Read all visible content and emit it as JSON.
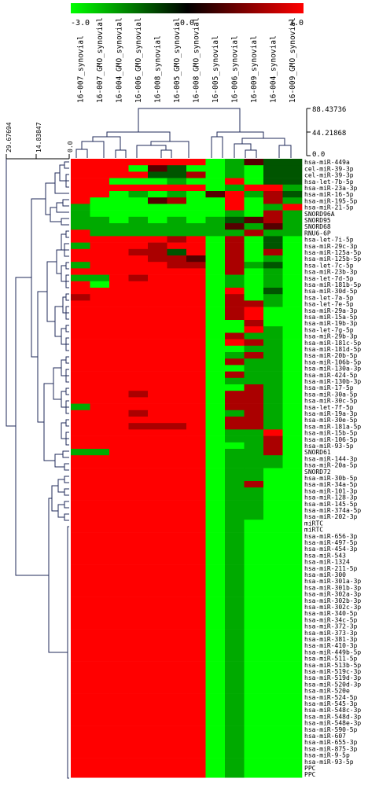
{
  "chart_data": {
    "type": "heatmap",
    "title": "",
    "color_scale": {
      "min": -3.0,
      "mid": 0.0,
      "max": 3.0,
      "min_label": "-3.0",
      "mid_label": "0.0",
      "max_label": "3.0",
      "low_color": "#00ff00",
      "mid_color": "#000000",
      "high_color": "#ff0000"
    },
    "columns": [
      "16-007_synovial",
      "16-007_GMO_synovial",
      "16-004_GMO_synovial",
      "16-006_GMO_synovial",
      "16-008_synovial",
      "16-005_GMO_synovial",
      "16-008_GMO_synovial",
      "16-005_synovial",
      "16-006_synovial",
      "16-009_synovial",
      "16-004_synovial",
      "16-009_GMO_synovial"
    ],
    "column_dendrogram_axis": {
      "ticks": [
        "88.43736",
        "44.21868",
        "0.0"
      ]
    },
    "row_dendrogram_axis": {
      "ticks": [
        "29.67694",
        "14.83847",
        "0.0"
      ]
    },
    "rows": [
      "hsa-miR-449a",
      "cel-miR-39-3p",
      "cel-miR-39-3p",
      "hsa-let-7b-5p",
      "hsa-miR-23a-3p",
      "hsa-miR-16-5p",
      "hsa-miR-195-5p",
      "hsa-miR-21-5p",
      "SNORD96A",
      "SNORD95",
      "SNORD68",
      "RNU6-6P",
      "hsa-let-7i-5p",
      "hsa-miR-29c-3p",
      "hsa-miR-125a-5p",
      "hsa-miR-125b-5p",
      "hsa-let-7c-5p",
      "hsa-miR-23b-3p",
      "hsa-let-7d-5p",
      "hsa-miR-181b-5p",
      "hsa-miR-30d-5p",
      "hsa-let-7a-5p",
      "hsa-let-7e-5p",
      "hsa-miR-29a-3p",
      "hsa-miR-15a-5p",
      "hsa-miR-19b-3p",
      "hsa-let-7g-5p",
      "hsa-miR-29b-3p",
      "hsa-miR-181c-5p",
      "hsa-miR-181d-5p",
      "hsa-miR-20b-5p",
      "hsa-miR-106b-5p",
      "hsa-miR-130a-3p",
      "hsa-miR-424-5p",
      "hsa-miR-130b-3p",
      "hsa-miR-17-5p",
      "hsa-miR-30a-5p",
      "hsa-miR-30c-5p",
      "hsa-let-7f-5p",
      "hsa-miR-19a-3p",
      "hsa-miR-30e-5p",
      "hsa-miR-181a-5p",
      "hsa-miR-15b-5p",
      "hsa-miR-106-5p",
      "hsa-miR-93-5p",
      "SNORD61",
      "hsa-miR-144-3p",
      "hsa-miR-20a-5p",
      "SNORD72",
      "hsa-miR-30b-5p",
      "hsa-miR-34a-5p",
      "hsa-miR-101-3p",
      "hsa-miR-128-3p",
      "hsa-miR-145-5p",
      "hsa-miR-374a-5p",
      "hsa-miR-202-3p",
      "miRTC",
      "miRTC",
      "hsa-miR-656-3p",
      "hsa-miR-497-5p",
      "hsa-miR-454-3p",
      "hsa-miR-543",
      "hsa-miR-1324",
      "hsa-miR-211-5p",
      "hsa-miR-300",
      "hsa-miR-301a-3p",
      "hsa-miR-301b-3p",
      "hsa-miR-302a-3p",
      "hsa-miR-302b-3p",
      "hsa-miR-302c-3p",
      "hsa-miR-340-5p",
      "hsa-miR-34c-5p",
      "hsa-miR-372-3p",
      "hsa-miR-373-3p",
      "hsa-miR-381-3p",
      "hsa-miR-410-3p",
      "hsa-miR-449b-5p",
      "hsa-miR-511-5p",
      "hsa-miR-513b-5p",
      "hsa-miR-519c-3p",
      "hsa-miR-519d-3p",
      "hsa-miR-520d-3p",
      "hsa-miR-520e",
      "hsa-miR-524-5p",
      "hsa-miR-545-3p",
      "hsa-miR-548c-3p",
      "hsa-miR-548d-3p",
      "hsa-miR-548e-3p",
      "hsa-miR-590-5p",
      "hsa-miR-607",
      "hsa-miR-655-3p",
      "hsa-miR-875-3p",
      "hsa-miR-9-5p",
      "hsa-miR-93-5p",
      "PPC",
      "PPC"
    ],
    "values": [
      [
        3,
        3,
        3,
        3,
        3,
        3,
        3,
        -3,
        -2,
        1,
        -1,
        -1
      ],
      [
        3,
        3,
        3,
        -3,
        1,
        -1,
        -3,
        -3,
        -2,
        -3,
        -1,
        -1
      ],
      [
        3,
        3,
        3,
        3,
        -1,
        -1,
        2,
        -3,
        -2,
        -3,
        -1,
        -1
      ],
      [
        3,
        3,
        -3,
        -3,
        -3,
        -2,
        -3,
        -3,
        3,
        -3,
        -1,
        -1
      ],
      [
        3,
        3,
        3,
        3,
        3,
        3,
        3,
        -3,
        -2,
        3,
        3,
        -2
      ],
      [
        3,
        3,
        -3,
        -2,
        -3,
        -2,
        -3,
        1,
        3,
        -2,
        2,
        -1
      ],
      [
        3,
        -3,
        -3,
        -3,
        1,
        2,
        -3,
        -3,
        3,
        -3,
        2,
        -2
      ],
      [
        -2,
        -3,
        -3,
        -3,
        -3,
        -3,
        -3,
        -3,
        3,
        -3,
        -2,
        3
      ],
      [
        -2,
        -3,
        -3,
        -3,
        -3,
        -3,
        -3,
        -3,
        -2,
        -3,
        2,
        -2
      ],
      [
        -2,
        -2,
        -3,
        -2,
        -3,
        -2,
        -3,
        -2,
        -1,
        1,
        2,
        -2
      ],
      [
        -2,
        -2,
        -2,
        -2,
        -2,
        -2,
        -2,
        -2,
        1,
        -2,
        1,
        -2
      ],
      [
        3,
        -2,
        -2,
        -2,
        -2,
        -2,
        -2,
        -2,
        -2,
        2,
        -2,
        -2
      ],
      [
        3,
        3,
        3,
        3,
        3,
        2,
        3,
        -3,
        2,
        -3,
        -1,
        -3
      ],
      [
        -2,
        3,
        3,
        3,
        2,
        3,
        3,
        -3,
        2,
        -3,
        -1,
        -3
      ],
      [
        3,
        3,
        3,
        2,
        2,
        -1,
        3,
        -3,
        2,
        -3,
        2,
        -3
      ],
      [
        3,
        3,
        3,
        3,
        2,
        2,
        1,
        -3,
        2,
        -3,
        -2,
        -3
      ],
      [
        -2,
        3,
        3,
        3,
        3,
        2,
        2,
        -3,
        2,
        -2,
        -1,
        -3
      ],
      [
        3,
        3,
        3,
        3,
        3,
        3,
        3,
        -3,
        2,
        -3,
        -2,
        -3
      ],
      [
        -2,
        -2,
        3,
        2,
        3,
        3,
        3,
        -3,
        -2,
        -3,
        -2,
        -3
      ],
      [
        3,
        -3,
        3,
        3,
        3,
        3,
        3,
        -3,
        -2,
        -3,
        -2,
        -3
      ],
      [
        3,
        3,
        3,
        3,
        3,
        3,
        3,
        -3,
        3,
        -3,
        -1,
        -3
      ],
      [
        2,
        3,
        3,
        3,
        3,
        3,
        3,
        -3,
        2,
        -3,
        -2,
        -3
      ],
      [
        3,
        3,
        3,
        3,
        3,
        3,
        3,
        -3,
        2,
        2,
        -2,
        -3
      ],
      [
        3,
        3,
        3,
        3,
        3,
        3,
        3,
        -3,
        2,
        3,
        -3,
        -3
      ],
      [
        3,
        3,
        3,
        3,
        3,
        3,
        3,
        -3,
        2,
        3,
        -3,
        -3
      ],
      [
        3,
        3,
        3,
        3,
        3,
        3,
        3,
        -3,
        -3,
        2,
        -3,
        -3
      ],
      [
        3,
        3,
        3,
        3,
        3,
        3,
        3,
        -3,
        -3,
        3,
        -2,
        -3
      ],
      [
        3,
        3,
        3,
        3,
        3,
        3,
        3,
        -3,
        2,
        -2,
        -2,
        -3
      ],
      [
        3,
        3,
        3,
        3,
        3,
        3,
        3,
        -3,
        3,
        2,
        -2,
        -3
      ],
      [
        3,
        3,
        3,
        3,
        3,
        3,
        3,
        -3,
        -3,
        -2,
        -2,
        -3
      ],
      [
        3,
        3,
        3,
        3,
        3,
        3,
        3,
        -3,
        -2,
        2,
        -2,
        -3
      ],
      [
        3,
        3,
        3,
        3,
        3,
        3,
        3,
        -3,
        2,
        -2,
        -2,
        -3
      ],
      [
        3,
        3,
        3,
        3,
        3,
        3,
        3,
        -3,
        -3,
        -2,
        -2,
        -3
      ],
      [
        3,
        3,
        3,
        3,
        3,
        3,
        3,
        -3,
        2,
        -2,
        -2,
        -3
      ],
      [
        3,
        3,
        3,
        3,
        3,
        3,
        3,
        -3,
        -2,
        -2,
        -2,
        -3
      ],
      [
        3,
        3,
        3,
        3,
        3,
        3,
        3,
        -3,
        -3,
        2,
        -2,
        -3
      ],
      [
        3,
        3,
        3,
        2,
        3,
        3,
        3,
        -3,
        2,
        2,
        -2,
        -3
      ],
      [
        3,
        3,
        3,
        3,
        3,
        3,
        3,
        -3,
        2,
        2,
        -2,
        -3
      ],
      [
        -2,
        3,
        3,
        3,
        3,
        3,
        3,
        -3,
        2,
        2,
        -2,
        -3
      ],
      [
        3,
        3,
        3,
        2,
        3,
        3,
        3,
        -3,
        -2,
        2,
        -2,
        -3
      ],
      [
        3,
        3,
        3,
        3,
        3,
        3,
        3,
        -3,
        2,
        2,
        -2,
        -3
      ],
      [
        3,
        3,
        3,
        2,
        2,
        2,
        3,
        -3,
        2,
        2,
        -2,
        -3
      ],
      [
        3,
        3,
        3,
        3,
        3,
        3,
        3,
        -3,
        -2,
        -2,
        3,
        -3
      ],
      [
        3,
        3,
        3,
        3,
        3,
        3,
        3,
        -3,
        -2,
        -2,
        2,
        -3
      ],
      [
        3,
        3,
        3,
        3,
        3,
        3,
        3,
        -3,
        -3,
        -2,
        2,
        -3
      ],
      [
        -2,
        -2,
        3,
        3,
        3,
        3,
        3,
        -3,
        -2,
        -2,
        2,
        -3
      ],
      [
        3,
        3,
        3,
        3,
        3,
        3,
        3,
        -3,
        -2,
        -2,
        -2,
        -3
      ],
      [
        3,
        3,
        3,
        3,
        3,
        3,
        3,
        -3,
        -2,
        -2,
        -2,
        -3
      ],
      [
        3,
        3,
        3,
        3,
        3,
        3,
        3,
        -3,
        -2,
        -2,
        -3,
        -3
      ],
      [
        3,
        3,
        3,
        3,
        3,
        3,
        3,
        -3,
        -2,
        -2,
        -3,
        -3
      ],
      [
        3,
        3,
        3,
        3,
        3,
        3,
        3,
        -3,
        -2,
        2,
        -3,
        -3
      ],
      [
        3,
        3,
        3,
        3,
        3,
        3,
        3,
        -3,
        -2,
        -2,
        -3,
        -3
      ],
      [
        3,
        3,
        3,
        3,
        3,
        3,
        3,
        -3,
        -2,
        -2,
        -3,
        -3
      ],
      [
        3,
        3,
        3,
        3,
        3,
        3,
        3,
        -3,
        -2,
        -2,
        -3,
        -3
      ],
      [
        3,
        3,
        3,
        3,
        3,
        3,
        3,
        -3,
        -2,
        -2,
        -3,
        -3
      ],
      [
        3,
        3,
        3,
        3,
        3,
        3,
        3,
        -3,
        -2,
        -2,
        -3,
        -3
      ],
      [
        3,
        3,
        3,
        3,
        3,
        3,
        3,
        -3,
        -2,
        -3,
        -3,
        -3
      ],
      [
        3,
        3,
        3,
        3,
        3,
        3,
        3,
        -3,
        -2,
        -3,
        -3,
        -3
      ],
      [
        3,
        3,
        3,
        3,
        3,
        3,
        3,
        -3,
        -2,
        -3,
        -3,
        -3
      ],
      [
        3,
        3,
        3,
        3,
        3,
        3,
        3,
        -3,
        -2,
        -3,
        -3,
        -3
      ],
      [
        3,
        3,
        3,
        3,
        3,
        3,
        3,
        -3,
        -2,
        -3,
        -3,
        -3
      ],
      [
        3,
        3,
        3,
        3,
        3,
        3,
        3,
        -3,
        -2,
        -3,
        -3,
        -3
      ],
      [
        3,
        3,
        3,
        3,
        3,
        3,
        3,
        -3,
        -2,
        -3,
        -3,
        -3
      ],
      [
        3,
        3,
        3,
        3,
        3,
        3,
        3,
        -3,
        -2,
        -3,
        -3,
        -3
      ],
      [
        3,
        3,
        3,
        3,
        3,
        3,
        3,
        -3,
        -2,
        -3,
        -3,
        -3
      ],
      [
        3,
        3,
        3,
        3,
        3,
        3,
        3,
        -3,
        -2,
        -3,
        -3,
        -3
      ],
      [
        3,
        3,
        3,
        3,
        3,
        3,
        3,
        -3,
        -2,
        -3,
        -3,
        -3
      ],
      [
        3,
        3,
        3,
        3,
        3,
        3,
        3,
        -3,
        -2,
        -3,
        -3,
        -3
      ],
      [
        3,
        3,
        3,
        3,
        3,
        3,
        3,
        -3,
        -2,
        -3,
        -3,
        -3
      ],
      [
        3,
        3,
        3,
        3,
        3,
        3,
        3,
        -3,
        -2,
        -3,
        -3,
        -3
      ],
      [
        3,
        3,
        3,
        3,
        3,
        3,
        3,
        -3,
        -2,
        -3,
        -3,
        -3
      ],
      [
        3,
        3,
        3,
        3,
        3,
        3,
        3,
        -3,
        -2,
        -3,
        -3,
        -3
      ],
      [
        3,
        3,
        3,
        3,
        3,
        3,
        3,
        -3,
        -2,
        -3,
        -3,
        -3
      ],
      [
        3,
        3,
        3,
        3,
        3,
        3,
        3,
        -3,
        -2,
        -3,
        -3,
        -3
      ],
      [
        3,
        3,
        3,
        3,
        3,
        3,
        3,
        -3,
        -2,
        -3,
        -3,
        -3
      ],
      [
        3,
        3,
        3,
        3,
        3,
        3,
        3,
        -3,
        -2,
        -3,
        -3,
        -3
      ],
      [
        3,
        3,
        3,
        3,
        3,
        3,
        3,
        -3,
        -2,
        -3,
        -3,
        -3
      ],
      [
        3,
        3,
        3,
        3,
        3,
        3,
        3,
        -3,
        -2,
        -3,
        -3,
        -3
      ],
      [
        3,
        3,
        3,
        3,
        3,
        3,
        3,
        -3,
        -2,
        -3,
        -3,
        -3
      ],
      [
        3,
        3,
        3,
        3,
        3,
        3,
        3,
        -3,
        -2,
        -3,
        -3,
        -3
      ],
      [
        3,
        3,
        3,
        3,
        3,
        3,
        3,
        -3,
        -2,
        -3,
        -3,
        -3
      ],
      [
        3,
        3,
        3,
        3,
        3,
        3,
        3,
        -3,
        -2,
        -3,
        -3,
        -3
      ],
      [
        3,
        3,
        3,
        3,
        3,
        3,
        3,
        -3,
        -2,
        -3,
        -3,
        -3
      ],
      [
        3,
        3,
        3,
        3,
        3,
        3,
        3,
        -3,
        -2,
        -3,
        -3,
        -3
      ],
      [
        3,
        3,
        3,
        3,
        3,
        3,
        3,
        -3,
        -2,
        -3,
        -3,
        -3
      ],
      [
        3,
        3,
        3,
        3,
        3,
        3,
        3,
        -3,
        -2,
        -3,
        -3,
        -3
      ],
      [
        3,
        3,
        3,
        3,
        3,
        3,
        3,
        -3,
        -2,
        -3,
        -3,
        -3
      ],
      [
        3,
        3,
        3,
        3,
        3,
        3,
        3,
        -3,
        -2,
        -3,
        -3,
        -3
      ],
      [
        3,
        3,
        3,
        3,
        3,
        3,
        3,
        -3,
        -2,
        -3,
        -3,
        -3
      ],
      [
        3,
        3,
        3,
        3,
        3,
        3,
        3,
        -3,
        -2,
        -3,
        -3,
        -3
      ],
      [
        3,
        3,
        3,
        3,
        3,
        3,
        3,
        -3,
        -2,
        -3,
        -3,
        -3
      ],
      [
        3,
        3,
        3,
        3,
        3,
        3,
        3,
        -3,
        -2,
        -3,
        -3,
        -3
      ],
      [
        3,
        3,
        3,
        3,
        3,
        3,
        3,
        -3,
        -2,
        -3,
        -3,
        -3
      ],
      [
        3,
        3,
        3,
        3,
        3,
        3,
        3,
        -3,
        -2,
        -3,
        -3,
        -3
      ],
      [
        3,
        3,
        3,
        3,
        3,
        3,
        3,
        -3,
        -2,
        -3,
        -3,
        -3
      ],
      [
        3,
        3,
        3,
        3,
        3,
        3,
        3,
        -3,
        -2,
        -3,
        -3,
        -3
      ]
    ]
  }
}
